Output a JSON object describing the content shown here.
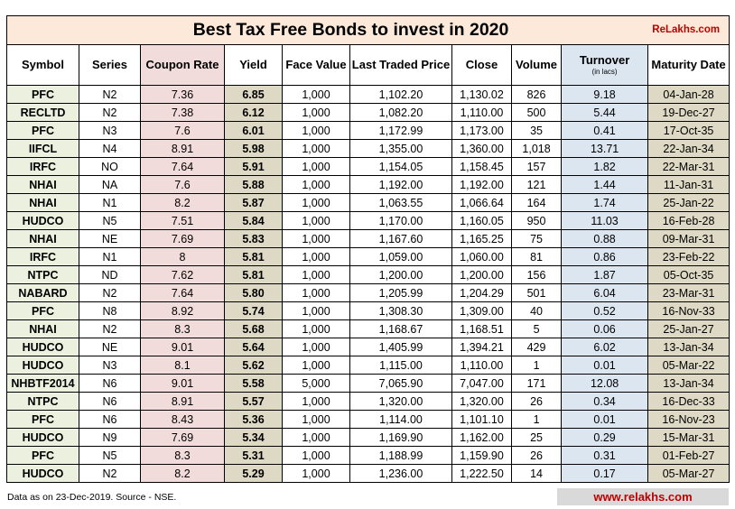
{
  "title": "Best Tax Free Bonds to invest in 2020",
  "brand": "ReLakhs.com",
  "columns": {
    "symbol": "Symbol",
    "series": "Series",
    "coupon_rate": "Coupon Rate",
    "yield": "Yield",
    "face_value": "Face Value",
    "last_traded_price": "Last Traded Price",
    "close": "Close",
    "volume": "Volume",
    "turnover": "Turnover",
    "turnover_unit": "(in lacs)",
    "maturity_date": "Maturity Date"
  },
  "rows": [
    [
      "PFC",
      "N2",
      "7.36",
      "6.85",
      "1,000",
      "1,102.20",
      "1,130.02",
      "826",
      "9.18",
      "04-Jan-28"
    ],
    [
      "RECLTD",
      "N2",
      "7.38",
      "6.12",
      "1,000",
      "1,082.20",
      "1,110.00",
      "500",
      "5.44",
      "19-Dec-27"
    ],
    [
      "PFC",
      "N3",
      "7.6",
      "6.01",
      "1,000",
      "1,172.99",
      "1,173.00",
      "35",
      "0.41",
      "17-Oct-35"
    ],
    [
      "IIFCL",
      "N4",
      "8.91",
      "5.98",
      "1,000",
      "1,355.00",
      "1,360.00",
      "1,018",
      "13.71",
      "22-Jan-34"
    ],
    [
      "IRFC",
      "NO",
      "7.64",
      "5.91",
      "1,000",
      "1,154.05",
      "1,158.45",
      "157",
      "1.82",
      "22-Mar-31"
    ],
    [
      "NHAI",
      "NA",
      "7.6",
      "5.88",
      "1,000",
      "1,192.00",
      "1,192.00",
      "121",
      "1.44",
      "11-Jan-31"
    ],
    [
      "NHAI",
      "N1",
      "8.2",
      "5.87",
      "1,000",
      "1,063.55",
      "1,066.64",
      "164",
      "1.74",
      "25-Jan-22"
    ],
    [
      "HUDCO",
      "N5",
      "7.51",
      "5.84",
      "1,000",
      "1,170.00",
      "1,160.05",
      "950",
      "11.03",
      "16-Feb-28"
    ],
    [
      "NHAI",
      "NE",
      "7.69",
      "5.83",
      "1,000",
      "1,167.60",
      "1,165.25",
      "75",
      "0.88",
      "09-Mar-31"
    ],
    [
      "IRFC",
      "N1",
      "8",
      "5.81",
      "1,000",
      "1,059.00",
      "1,060.00",
      "81",
      "0.86",
      "23-Feb-22"
    ],
    [
      "NTPC",
      "ND",
      "7.62",
      "5.81",
      "1,000",
      "1,200.00",
      "1,200.00",
      "156",
      "1.87",
      "05-Oct-35"
    ],
    [
      "NABARD",
      "N2",
      "7.64",
      "5.80",
      "1,000",
      "1,205.99",
      "1,204.29",
      "501",
      "6.04",
      "23-Mar-31"
    ],
    [
      "PFC",
      "N8",
      "8.92",
      "5.74",
      "1,000",
      "1,308.30",
      "1,309.00",
      "40",
      "0.52",
      "16-Nov-33"
    ],
    [
      "NHAI",
      "N2",
      "8.3",
      "5.68",
      "1,000",
      "1,168.67",
      "1,168.51",
      "5",
      "0.06",
      "25-Jan-27"
    ],
    [
      "HUDCO",
      "NE",
      "9.01",
      "5.64",
      "1,000",
      "1,405.99",
      "1,394.21",
      "429",
      "6.02",
      "13-Jan-34"
    ],
    [
      "HUDCO",
      "N3",
      "8.1",
      "5.62",
      "1,000",
      "1,115.00",
      "1,110.00",
      "1",
      "0.01",
      "05-Mar-22"
    ],
    [
      "NHBTF2014",
      "N6",
      "9.01",
      "5.58",
      "5,000",
      "7,065.90",
      "7,047.00",
      "171",
      "12.08",
      "13-Jan-34"
    ],
    [
      "NTPC",
      "N6",
      "8.91",
      "5.57",
      "1,000",
      "1,320.00",
      "1,320.00",
      "26",
      "0.34",
      "16-Dec-33"
    ],
    [
      "PFC",
      "N6",
      "8.43",
      "5.36",
      "1,000",
      "1,114.00",
      "1,101.10",
      "1",
      "0.01",
      "16-Nov-23"
    ],
    [
      "HUDCO",
      "N9",
      "7.69",
      "5.34",
      "1,000",
      "1,169.90",
      "1,162.00",
      "25",
      "0.29",
      "15-Mar-31"
    ],
    [
      "PFC",
      "N5",
      "8.3",
      "5.31",
      "1,000",
      "1,188.99",
      "1,159.90",
      "26",
      "0.31",
      "01-Feb-27"
    ],
    [
      "HUDCO",
      "N2",
      "8.2",
      "5.29",
      "1,000",
      "1,236.00",
      "1,222.50",
      "14",
      "0.17",
      "05-Mar-27"
    ]
  ],
  "footer": {
    "note": "Data as on 23-Dec-2019. Source - NSE.",
    "site": "www.relakhs.com"
  },
  "colors": {
    "title_bg": "#fde9d9",
    "symbol_bg": "#ebf1de",
    "coupon_bg": "#f2dcdb",
    "yield_bg": "#ddd9c4",
    "turnover_bg": "#dce6f1",
    "maturity_bg": "#ddd9c4",
    "brand_red": "#c00000"
  }
}
